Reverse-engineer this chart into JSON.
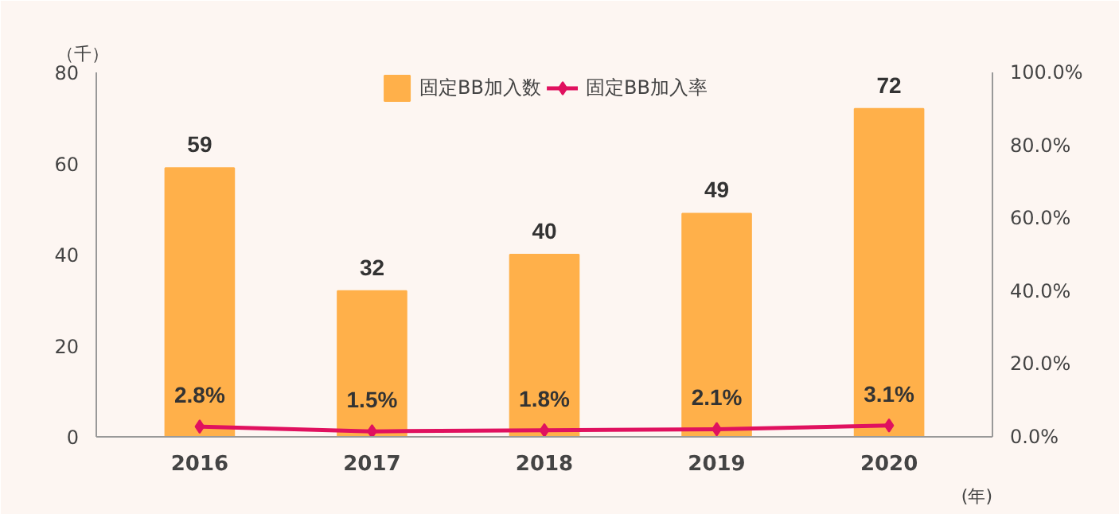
{
  "chart_data": {
    "type": "bar",
    "categories": [
      "2016",
      "2017",
      "2018",
      "2019",
      "2020"
    ],
    "ylabel": "（千）",
    "xlabel": "(年)",
    "series": [
      {
        "name": "固定BB加入数",
        "color": "#ffb04a",
        "values": [
          59,
          32,
          40,
          49,
          72
        ],
        "value_labels": [
          "59",
          "32",
          "40",
          "49",
          "72"
        ]
      },
      {
        "name": "固定BB加入率",
        "type": "line",
        "axis": "y2",
        "color": "#e0115f",
        "marker": "diamond",
        "values": [
          2.8,
          1.5,
          1.8,
          2.1,
          3.1
        ],
        "value_labels": [
          "2.8%",
          "1.5%",
          "1.8%",
          "2.1%",
          "3.1%"
        ]
      }
    ],
    "ylim": [
      0,
      80
    ],
    "yticks": [
      0,
      20,
      40,
      60,
      80
    ],
    "y2lim": [
      0,
      100
    ],
    "y2ticks": [
      {
        "value": 0,
        "label": "0.0%"
      },
      {
        "value": 20,
        "label": "20.0%"
      },
      {
        "value": 40,
        "label": "40.0%"
      },
      {
        "value": 60,
        "label": "60.0%"
      },
      {
        "value": 80,
        "label": "80.0%"
      },
      {
        "value": 100,
        "label": "100.0%"
      }
    ],
    "legend": "top",
    "grid": false
  }
}
